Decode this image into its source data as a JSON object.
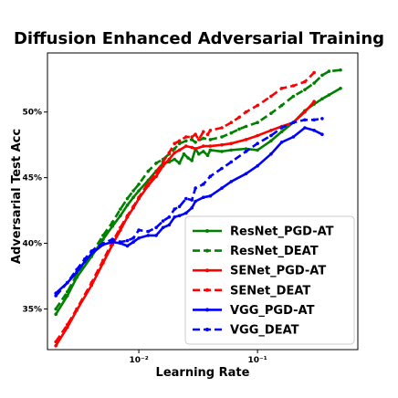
{
  "chart_data": {
    "type": "line",
    "title": "Diffusion Enhanced Adversarial Training",
    "xlabel": "Learning Rate",
    "ylabel": "Adversarial Test Acc",
    "xscale": "log",
    "xlim": [
      0.0017,
      0.7
    ],
    "ylim": [
      31.9,
      54.5
    ],
    "x_ticks": [
      {
        "value": 0.01,
        "label": "10⁻²"
      },
      {
        "value": 0.1,
        "label": "10⁻¹"
      }
    ],
    "y_ticks": [
      {
        "value": 35,
        "label": "35%"
      },
      {
        "value": 40,
        "label": "40%"
      },
      {
        "value": 45,
        "label": "45%"
      },
      {
        "value": 50,
        "label": "50%"
      }
    ],
    "grid": false,
    "legend_position": "lower-right",
    "series": [
      {
        "name": "ResNet_PGD-AT",
        "color": "#008000",
        "linestyle": "solid",
        "marker": "dot",
        "x": [
          0.002,
          0.0025,
          0.003,
          0.004,
          0.005,
          0.006,
          0.007,
          0.008,
          0.009,
          0.01,
          0.012,
          0.014,
          0.016,
          0.018,
          0.02,
          0.022,
          0.024,
          0.026,
          0.028,
          0.03,
          0.032,
          0.035,
          0.038,
          0.04,
          0.05,
          0.06,
          0.08,
          0.1,
          0.13,
          0.16,
          0.2,
          0.25,
          0.3,
          0.35,
          0.4,
          0.5
        ],
        "y": [
          34.6,
          36.0,
          37.4,
          39.0,
          40.3,
          41.3,
          42.1,
          42.9,
          43.5,
          44.0,
          44.8,
          45.5,
          46.1,
          46.2,
          46.4,
          46.1,
          46.8,
          46.5,
          46.3,
          47.2,
          46.8,
          47.0,
          46.7,
          47.1,
          47.0,
          47.1,
          47.2,
          47.1,
          47.8,
          48.5,
          49.2,
          50.1,
          50.6,
          51.0,
          51.3,
          51.8
        ]
      },
      {
        "name": "ResNet_DEAT",
        "color": "#008000",
        "linestyle": "dashed",
        "marker": "dot",
        "x": [
          0.002,
          0.0025,
          0.003,
          0.004,
          0.005,
          0.006,
          0.007,
          0.008,
          0.009,
          0.01,
          0.012,
          0.014,
          0.016,
          0.018,
          0.02,
          0.022,
          0.025,
          0.028,
          0.03,
          0.035,
          0.04,
          0.05,
          0.06,
          0.07,
          0.08,
          0.1,
          0.13,
          0.16,
          0.2,
          0.25,
          0.3,
          0.35,
          0.4,
          0.5
        ],
        "y": [
          35.0,
          36.3,
          37.6,
          39.2,
          40.6,
          41.6,
          42.6,
          43.4,
          44.0,
          44.5,
          45.5,
          46.1,
          46.4,
          46.8,
          47.2,
          47.6,
          47.8,
          47.9,
          47.7,
          48.0,
          47.9,
          48.1,
          48.4,
          48.7,
          48.9,
          49.2,
          49.9,
          50.5,
          51.2,
          51.7,
          52.2,
          52.8,
          53.1,
          53.2
        ]
      },
      {
        "name": "SENet_PGD-AT",
        "color": "#ff0000",
        "linestyle": "solid",
        "marker": "dot",
        "x": [
          0.002,
          0.0025,
          0.003,
          0.004,
          0.005,
          0.006,
          0.007,
          0.008,
          0.009,
          0.01,
          0.012,
          0.014,
          0.016,
          0.018,
          0.02,
          0.022,
          0.025,
          0.028,
          0.03,
          0.035,
          0.04,
          0.05,
          0.06,
          0.08,
          0.1,
          0.13,
          0.16,
          0.2,
          0.25,
          0.3
        ],
        "y": [
          32.2,
          33.6,
          34.9,
          36.8,
          38.5,
          39.9,
          41.0,
          42.0,
          42.7,
          43.4,
          44.4,
          45.1,
          45.9,
          46.4,
          46.9,
          47.1,
          47.4,
          47.3,
          47.2,
          47.4,
          47.4,
          47.5,
          47.6,
          47.9,
          48.2,
          48.6,
          48.9,
          49.2,
          50.0,
          50.8
        ]
      },
      {
        "name": "SENet_DEAT",
        "color": "#ff0000",
        "linestyle": "dashed",
        "marker": "dot",
        "x": [
          0.002,
          0.0025,
          0.003,
          0.004,
          0.005,
          0.006,
          0.007,
          0.008,
          0.009,
          0.01,
          0.012,
          0.014,
          0.016,
          0.018,
          0.02,
          0.022,
          0.025,
          0.028,
          0.03,
          0.032,
          0.035,
          0.038,
          0.04,
          0.05,
          0.06,
          0.07,
          0.08,
          0.1,
          0.13,
          0.16,
          0.2,
          0.25,
          0.3
        ],
        "y": [
          32.5,
          33.8,
          35.0,
          37.0,
          38.7,
          40.1,
          41.2,
          42.1,
          42.8,
          43.5,
          44.6,
          45.4,
          46.2,
          46.9,
          47.6,
          47.8,
          48.1,
          48.1,
          48.3,
          47.9,
          48.5,
          48.3,
          48.6,
          48.8,
          49.2,
          49.6,
          50.0,
          50.5,
          51.2,
          51.8,
          52.0,
          52.3,
          53.0
        ]
      },
      {
        "name": "VGG_PGD-AT",
        "color": "#0000ff",
        "linestyle": "solid",
        "marker": "dot",
        "x": [
          0.002,
          0.0025,
          0.003,
          0.0035,
          0.004,
          0.005,
          0.006,
          0.007,
          0.008,
          0.009,
          0.01,
          0.012,
          0.014,
          0.016,
          0.018,
          0.02,
          0.022,
          0.025,
          0.028,
          0.03,
          0.035,
          0.04,
          0.05,
          0.06,
          0.08,
          0.1,
          0.13,
          0.16,
          0.2,
          0.25,
          0.3,
          0.35
        ],
        "y": [
          36.2,
          37.0,
          37.8,
          38.6,
          39.2,
          39.9,
          40.1,
          40.0,
          39.8,
          40.1,
          40.4,
          40.6,
          40.6,
          41.2,
          41.4,
          42.0,
          42.1,
          42.3,
          42.7,
          43.2,
          43.5,
          43.6,
          44.2,
          44.7,
          45.3,
          45.9,
          46.8,
          47.7,
          48.1,
          48.8,
          48.6,
          48.3
        ]
      },
      {
        "name": "VGG_DEAT",
        "color": "#0000ff",
        "linestyle": "dashed",
        "marker": "dot",
        "x": [
          0.002,
          0.0025,
          0.003,
          0.0035,
          0.004,
          0.005,
          0.006,
          0.007,
          0.008,
          0.009,
          0.01,
          0.012,
          0.014,
          0.016,
          0.018,
          0.02,
          0.022,
          0.025,
          0.028,
          0.03,
          0.035,
          0.04,
          0.05,
          0.06,
          0.08,
          0.1,
          0.13,
          0.16,
          0.2,
          0.25,
          0.3,
          0.35
        ],
        "y": [
          36.0,
          37.0,
          38.0,
          38.8,
          39.4,
          40.0,
          40.3,
          40.1,
          40.2,
          40.4,
          41.0,
          40.9,
          41.2,
          41.7,
          42.0,
          42.6,
          42.8,
          43.4,
          43.3,
          44.2,
          44.5,
          45.1,
          45.7,
          46.2,
          47.0,
          47.6,
          48.2,
          48.8,
          49.2,
          49.4,
          49.4,
          49.5
        ]
      }
    ]
  }
}
